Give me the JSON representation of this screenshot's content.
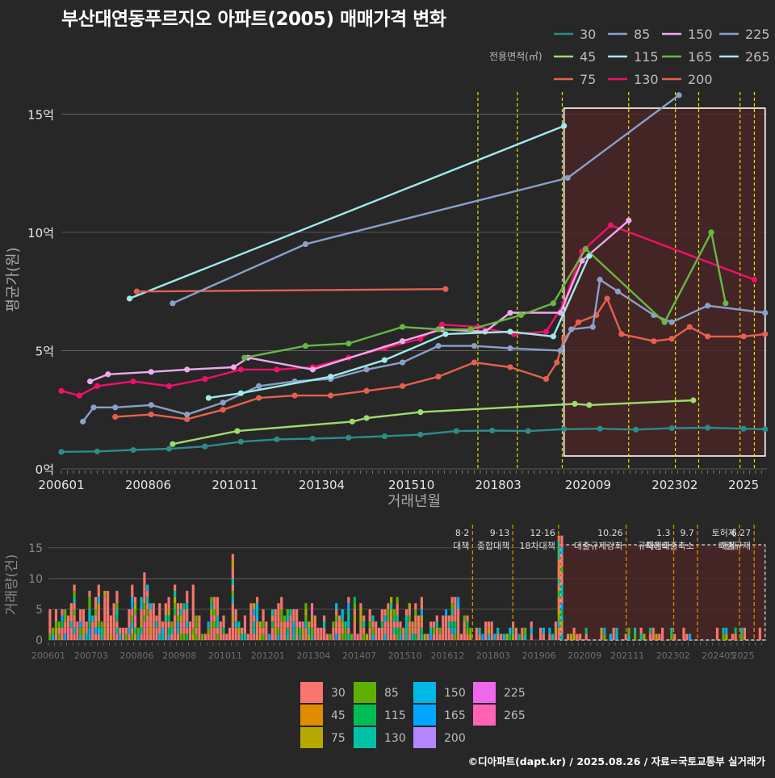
{
  "title": "부산대연동푸르지오 아파트(2005) 매매가격 변화",
  "footer": "©디아파트(dapt.kr) / 2025.08.26 / 자료=국토교통부 실거래가",
  "colors": {
    "background": "#272727",
    "highlight_fill": "#4a2626",
    "policy_line": "#e8e000",
    "policy_line_bottom": "#d08a00",
    "grid": "#6a6a6a"
  },
  "chart_data": [
    {
      "id": "price",
      "type": "line",
      "title": "부산대연동푸르지오 아파트(2005) 매매가격 변화",
      "xlabel": "거래년월",
      "ylabel": "평균가(원)",
      "ylim": [
        0,
        16
      ],
      "x_ticks": [
        "200601",
        "200806",
        "201011",
        "201304",
        "201510",
        "201803",
        "202009",
        "202302",
        "2025"
      ],
      "y_ticks": [
        {
          "value": 0,
          "label": "0억"
        },
        {
          "value": 5,
          "label": "5억"
        },
        {
          "value": 10,
          "label": "10억"
        },
        {
          "value": 15,
          "label": "15억"
        }
      ],
      "legend": {
        "title": "전용면적(㎡)",
        "position": "top-right"
      },
      "highlight_range": [
        2020.0,
        2025.6
      ],
      "policy_dates": [
        2017.6,
        2018.7,
        2019.95,
        2021.8,
        2023.1,
        2023.75,
        2024.9,
        2025.3
      ],
      "series": [
        {
          "name": "30",
          "color": "#2b8c8c",
          "points": [
            [
              2006.0,
              0.72
            ],
            [
              2007.0,
              0.74
            ],
            [
              2008.0,
              0.8
            ],
            [
              2009.0,
              0.85
            ],
            [
              2010.0,
              0.95
            ],
            [
              2011.0,
              1.15
            ],
            [
              2012.0,
              1.25
            ],
            [
              2013.0,
              1.28
            ],
            [
              2014.0,
              1.32
            ],
            [
              2015.0,
              1.38
            ],
            [
              2016.0,
              1.45
            ],
            [
              2017.0,
              1.6
            ],
            [
              2018.0,
              1.62
            ],
            [
              2019.0,
              1.6
            ],
            [
              2020.0,
              1.68
            ],
            [
              2021.0,
              1.7
            ],
            [
              2022.0,
              1.66
            ],
            [
              2023.0,
              1.72
            ],
            [
              2024.0,
              1.74
            ],
            [
              2025.0,
              1.7
            ],
            [
              2025.6,
              1.68
            ]
          ]
        },
        {
          "name": "45",
          "color": "#9edb6d",
          "points": [
            [
              2009.1,
              1.05
            ],
            [
              2010.9,
              1.6
            ],
            [
              2014.1,
              2.0
            ],
            [
              2014.5,
              2.15
            ],
            [
              2016.0,
              2.4
            ],
            [
              2020.3,
              2.75
            ],
            [
              2020.7,
              2.7
            ],
            [
              2023.6,
              2.9
            ]
          ]
        },
        {
          "name": "75",
          "color": "#e66050",
          "points": [
            [
              2007.5,
              2.2
            ],
            [
              2008.5,
              2.3
            ],
            [
              2009.5,
              2.1
            ],
            [
              2010.5,
              2.5
            ],
            [
              2011.5,
              3.0
            ],
            [
              2012.5,
              3.1
            ],
            [
              2013.5,
              3.1
            ],
            [
              2014.5,
              3.3
            ],
            [
              2015.5,
              3.5
            ],
            [
              2016.5,
              3.9
            ],
            [
              2017.5,
              4.5
            ],
            [
              2018.5,
              4.3
            ],
            [
              2019.5,
              3.8
            ],
            [
              2019.8,
              4.5
            ],
            [
              2020.0,
              5.5
            ],
            [
              2020.4,
              6.2
            ],
            [
              2020.9,
              6.5
            ],
            [
              2021.2,
              7.2
            ],
            [
              2021.6,
              5.7
            ],
            [
              2022.5,
              5.4
            ],
            [
              2023.0,
              5.5
            ],
            [
              2023.5,
              6.0
            ],
            [
              2024.0,
              5.6
            ],
            [
              2025.0,
              5.6
            ],
            [
              2025.6,
              5.7
            ]
          ]
        },
        {
          "name": "85",
          "color": "#8aa0c8",
          "points": [
            [
              2006.6,
              2.0
            ],
            [
              2006.9,
              2.6
            ],
            [
              2007.5,
              2.6
            ],
            [
              2008.5,
              2.7
            ],
            [
              2009.5,
              2.3
            ],
            [
              2010.5,
              2.8
            ],
            [
              2011.5,
              3.5
            ],
            [
              2012.5,
              3.7
            ],
            [
              2013.5,
              3.8
            ],
            [
              2014.5,
              4.2
            ],
            [
              2015.5,
              4.5
            ],
            [
              2016.5,
              5.2
            ],
            [
              2017.5,
              5.2
            ],
            [
              2018.5,
              5.1
            ],
            [
              2019.9,
              5.0
            ],
            [
              2020.2,
              5.9
            ],
            [
              2020.8,
              6.0
            ],
            [
              2021.0,
              8.0
            ],
            [
              2021.5,
              7.5
            ],
            [
              2022.5,
              6.5
            ],
            [
              2023.0,
              6.2
            ],
            [
              2024.0,
              6.9
            ],
            [
              2025.6,
              6.6
            ]
          ]
        },
        {
          "name": "115",
          "color": "#a0eaea",
          "points": [
            [
              2007.9,
              7.2
            ],
            [
              2020.0,
              14.5
            ]
          ]
        },
        {
          "name": "130",
          "color": "#f0106a",
          "points": [
            [
              2006.0,
              3.3
            ],
            [
              2006.5,
              3.1
            ],
            [
              2007.0,
              3.5
            ],
            [
              2008.0,
              3.7
            ],
            [
              2009.0,
              3.5
            ],
            [
              2010.0,
              3.8
            ],
            [
              2011.0,
              4.2
            ],
            [
              2012.0,
              4.2
            ],
            [
              2013.0,
              4.3
            ],
            [
              2014.0,
              4.7
            ],
            [
              2015.0,
              5.1
            ],
            [
              2016.0,
              5.5
            ],
            [
              2016.6,
              6.1
            ],
            [
              2017.6,
              6.0
            ],
            [
              2018.6,
              5.7
            ],
            [
              2019.5,
              5.8
            ],
            [
              2020.0,
              7.0
            ],
            [
              2020.5,
              9.2
            ],
            [
              2021.3,
              10.3
            ],
            [
              2025.3,
              8.0
            ]
          ]
        },
        {
          "name": "150",
          "color": "#eeaaee",
          "points": [
            [
              2006.8,
              3.7
            ],
            [
              2007.3,
              4.0
            ],
            [
              2008.5,
              4.1
            ],
            [
              2009.5,
              4.2
            ],
            [
              2010.8,
              4.3
            ],
            [
              2011.2,
              4.7
            ],
            [
              2013.0,
              4.2
            ],
            [
              2015.5,
              5.4
            ],
            [
              2016.6,
              5.9
            ],
            [
              2017.8,
              5.8
            ],
            [
              2018.5,
              6.6
            ],
            [
              2019.9,
              6.6
            ],
            [
              2020.5,
              8.8
            ],
            [
              2021.8,
              10.5
            ]
          ]
        },
        {
          "name": "165",
          "color": "#66b844",
          "points": [
            [
              2011.1,
              4.7
            ],
            [
              2012.8,
              5.2
            ],
            [
              2014.0,
              5.3
            ],
            [
              2015.5,
              6.0
            ],
            [
              2016.5,
              5.9
            ],
            [
              2017.4,
              5.9
            ],
            [
              2018.8,
              6.5
            ],
            [
              2019.7,
              7.0
            ],
            [
              2020.6,
              9.3
            ],
            [
              2022.8,
              6.2
            ],
            [
              2024.1,
              10.0
            ],
            [
              2024.5,
              7.0
            ]
          ]
        },
        {
          "name": "200",
          "color": "#e66050",
          "points": [
            [
              2008.1,
              7.5
            ],
            [
              2016.7,
              7.6
            ]
          ]
        },
        {
          "name": "225",
          "color": "#8aa0c8",
          "points": [
            [
              2009.1,
              7.0
            ],
            [
              2012.8,
              9.5
            ],
            [
              2020.1,
              12.3
            ],
            [
              2023.2,
              15.8
            ]
          ]
        },
        {
          "name": "265",
          "color": "#a0eaea",
          "points": [
            [
              2010.1,
              3.0
            ],
            [
              2011.0,
              3.2
            ],
            [
              2013.5,
              3.9
            ],
            [
              2015.0,
              4.6
            ],
            [
              2016.7,
              5.7
            ],
            [
              2018.5,
              5.8
            ],
            [
              2019.7,
              5.6
            ],
            [
              2020.7,
              9.0
            ]
          ]
        }
      ]
    },
    {
      "id": "volume",
      "type": "bar",
      "stacked": true,
      "ylabel": "거래량(건)",
      "ylim": [
        0,
        18
      ],
      "x_ticks": [
        "200601",
        "200703",
        "200806",
        "200908",
        "201011",
        "201201",
        "201304",
        "201407",
        "201510",
        "201612",
        "201803",
        "201906",
        "202009",
        "202111",
        "202302",
        "202405",
        "2025"
      ],
      "y_ticks": [
        {
          "value": 0,
          "label": "0"
        },
        {
          "value": 5,
          "label": "5"
        },
        {
          "value": 10,
          "label": "10"
        },
        {
          "value": 15,
          "label": "15"
        }
      ],
      "highlight_range": [
        2020.0,
        2025.6
      ],
      "policy_events": [
        {
          "date": 2017.6,
          "label": "8·2 대책"
        },
        {
          "date": 2018.7,
          "label": "9·13 종합대책"
        },
        {
          "date": 2019.95,
          "label": "12·16 18차대책"
        },
        {
          "date": 2021.8,
          "label": "10.26 대출규제강화"
        },
        {
          "date": 2023.1,
          "label": "1.3 규제완화"
        },
        {
          "date": 2023.75,
          "label": "9.7 특례대출축소"
        },
        {
          "date": 2024.9,
          "label": "토허제 해제"
        },
        {
          "date": 2025.3,
          "label": "6.27 대출규제"
        }
      ],
      "legend_position": "bottom",
      "series_names": [
        "30",
        "45",
        "75",
        "85",
        "115",
        "130",
        "150",
        "165",
        "200",
        "225",
        "265"
      ],
      "series_colors": [
        "#f8766d",
        "#e08b00",
        "#b5a800",
        "#5db000",
        "#00bc55",
        "#00c1a5",
        "#00b8e5",
        "#00a6ff",
        "#b385ff",
        "#ef67eb",
        "#ff63b6"
      ]
    }
  ]
}
